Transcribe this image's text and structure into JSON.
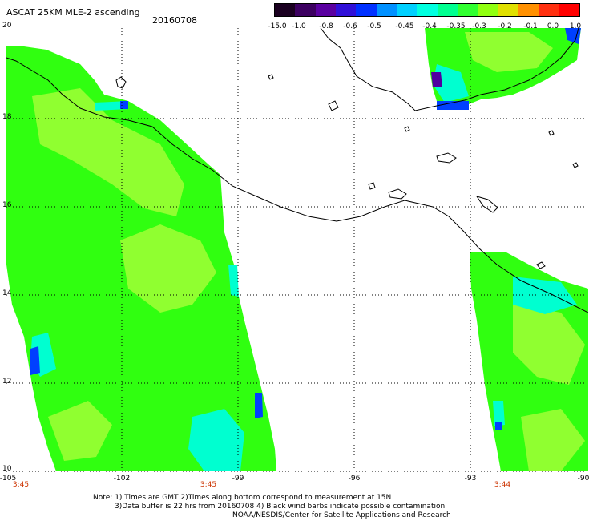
{
  "title": "ASCAT 25KM MLE-2 ascending",
  "date": "20160708",
  "colorbar": {
    "ticks": [
      "-15.0",
      "-1.0",
      "-0.8",
      "-0.6",
      "-0.5",
      "-0.45",
      "-0.4",
      "-0.35",
      "-0.3",
      "-0.2",
      "-0.1",
      "0.0",
      "1.0"
    ],
    "colors": [
      "#1a0020",
      "#3c0060",
      "#5a00a0",
      "#3010d8",
      "#0030ff",
      "#0090ff",
      "#00d0ff",
      "#00ffe0",
      "#00ff90",
      "#30ff30",
      "#90ff10",
      "#e0e000",
      "#ff9000",
      "#ff3010",
      "#ff0000"
    ]
  },
  "axes": {
    "lat_labels": [
      "20",
      "18",
      "16",
      "14",
      "12",
      "10"
    ],
    "lon_labels": [
      "-105",
      "-102",
      "-99",
      "-96",
      "-93",
      "-90"
    ],
    "times": [
      "3:45",
      "3:45",
      "3:44"
    ]
  },
  "note": {
    "line1": "Note: 1) Times are GMT 2)Times along bottom correspond to measurement at 15N",
    "line2": "3)Data buffer is 22 hrs from 20160708 4) Black wind barbs indicate possible contamination",
    "line3": "NOAA/NESDIS/Center for Satellite Applications and Research"
  },
  "swath_colors": {
    "main": "#30ff10",
    "light": "#90ff30",
    "cyan": "#00ffd0",
    "blue": "#0040ff",
    "purple": "#5000a0"
  }
}
